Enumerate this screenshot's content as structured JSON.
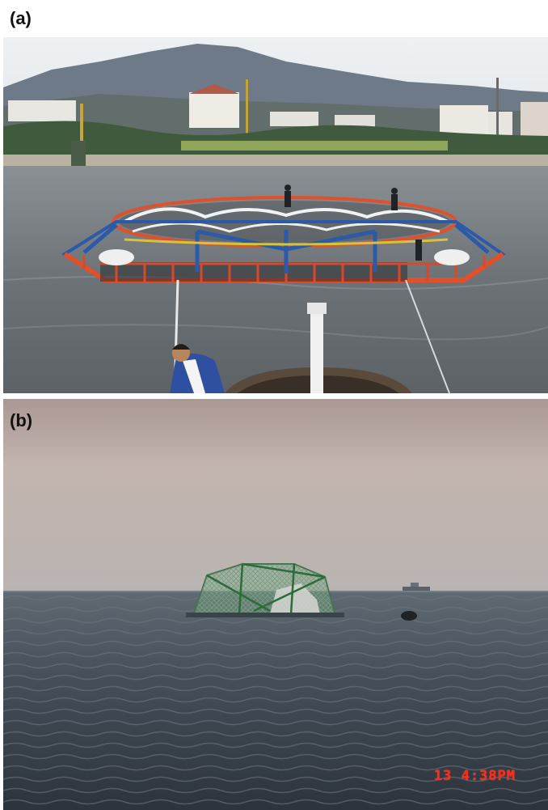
{
  "panels": [
    {
      "label": "(a)"
    },
    {
      "label": "(b)",
      "timestamp": "13   4:38PM"
    }
  ],
  "colors": {
    "sky_a": "#e3e7ea",
    "water_a": "#6f7478",
    "cage_red": "#e0502a",
    "cage_blue": "#2b5aa8",
    "sky_b_top": "#c9b6ae",
    "sea_b": "#3e4a57",
    "net_green": "#5f8c6a",
    "timestamp": "#ff2a1a"
  },
  "icons": [
    "fish-cage-photo",
    "submerged-cage-photo"
  ]
}
